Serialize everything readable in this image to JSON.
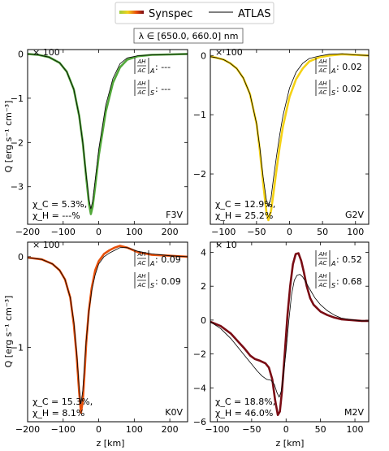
{
  "legend": {
    "entries": [
      {
        "label": "Synspec",
        "colors": [
          "#9ccc3c",
          "#f2d21c",
          "#e64a0a",
          "#7a0c14"
        ]
      },
      {
        "label": "ATLAS",
        "color": "#000000"
      }
    ]
  },
  "wavelength_label": "λ ∈ [650.0, 660.0] nm",
  "ylabel": "Q [erg s⁻¹ cm⁻³]",
  "xlabel": "z [km]",
  "chart_data": [
    {
      "type": "line",
      "name": "F3V",
      "title": "F3V",
      "scale_label": "× 100",
      "xlim": [
        -200,
        250
      ],
      "ylim": [
        -3.85,
        0.1
      ],
      "xticks": [
        -200,
        -100,
        0,
        100,
        200
      ],
      "yticks": [
        0,
        -1,
        -2,
        -3
      ],
      "color": "#52a83a",
      "ratio_A": "---",
      "ratio_S": "---",
      "chi_c": "χ_C = 5.3%,",
      "chi_h": "χ_H = ---%",
      "series": [
        {
          "name": "Synspec",
          "x": [
            -200,
            -170,
            -140,
            -110,
            -90,
            -70,
            -55,
            -45,
            -35,
            -27,
            -22,
            -17,
            -10,
            0,
            20,
            40,
            60,
            80,
            110,
            150,
            200,
            250
          ],
          "y": [
            0,
            -0.02,
            -0.07,
            -0.2,
            -0.4,
            -0.8,
            -1.4,
            -2.0,
            -2.8,
            -3.4,
            -3.62,
            -3.45,
            -3.0,
            -2.3,
            -1.3,
            -0.65,
            -0.3,
            -0.13,
            -0.05,
            -0.02,
            -0.01,
            0
          ]
        },
        {
          "name": "ATLAS",
          "x": [
            -200,
            -170,
            -140,
            -110,
            -90,
            -70,
            -55,
            -45,
            -35,
            -27,
            -22,
            -17,
            -10,
            0,
            20,
            40,
            60,
            80,
            110,
            150,
            200,
            250
          ],
          "y": [
            0,
            -0.02,
            -0.07,
            -0.2,
            -0.4,
            -0.8,
            -1.4,
            -2.0,
            -2.75,
            -3.3,
            -3.5,
            -3.32,
            -2.85,
            -2.15,
            -1.15,
            -0.55,
            -0.22,
            -0.09,
            -0.04,
            -0.02,
            -0.01,
            0
          ]
        }
      ]
    },
    {
      "type": "line",
      "name": "G2V",
      "title": "G2V",
      "scale_label": "× 100",
      "xlim": [
        -120,
        120
      ],
      "ylim": [
        -2.85,
        0.1
      ],
      "xticks": [
        -100,
        -50,
        0,
        50,
        100
      ],
      "yticks": [
        0,
        -1,
        -2
      ],
      "color": "#f5d214",
      "ratio_A": "0.02",
      "ratio_S": "0.02",
      "chi_c": "χ_C = 12.9%,",
      "chi_h": "χ_H = 25.2%",
      "series": [
        {
          "name": "Synspec",
          "x": [
            -120,
            -110,
            -100,
            -90,
            -80,
            -70,
            -60,
            -50,
            -45,
            -40,
            -35,
            -32,
            -28,
            -24,
            -20,
            -15,
            -10,
            0,
            10,
            20,
            30,
            45,
            60,
            80,
            100,
            120
          ],
          "y": [
            -0.02,
            -0.04,
            -0.07,
            -0.13,
            -0.22,
            -0.38,
            -0.65,
            -1.15,
            -1.6,
            -2.15,
            -2.65,
            -2.78,
            -2.62,
            -2.3,
            -1.95,
            -1.55,
            -1.2,
            -0.7,
            -0.4,
            -0.22,
            -0.1,
            -0.03,
            0,
            0.02,
            0.01,
            0
          ]
        },
        {
          "name": "ATLAS",
          "x": [
            -120,
            -110,
            -100,
            -90,
            -80,
            -70,
            -60,
            -50,
            -45,
            -40,
            -35,
            -32,
            -28,
            -24,
            -20,
            -15,
            -10,
            0,
            10,
            20,
            30,
            45,
            60,
            80,
            100,
            120
          ],
          "y": [
            -0.02,
            -0.04,
            -0.07,
            -0.13,
            -0.22,
            -0.38,
            -0.65,
            -1.15,
            -1.55,
            -2.05,
            -2.45,
            -2.55,
            -2.4,
            -2.05,
            -1.72,
            -1.35,
            -1.02,
            -0.55,
            -0.28,
            -0.13,
            -0.05,
            -0.01,
            0.02,
            0.03,
            0.01,
            0
          ]
        }
      ]
    },
    {
      "type": "line",
      "name": "K0V",
      "title": "K0V",
      "scale_label": "× 100",
      "xlim": [
        -200,
        250
      ],
      "ylim": [
        -1.82,
        0.16
      ],
      "xticks": [
        -200,
        -100,
        0,
        100,
        200
      ],
      "yticks": [
        0,
        -1
      ],
      "color": "#e6500a",
      "ratio_A": "0.09",
      "ratio_S": "0.09",
      "chi_c": "χ_C = 15.3%,",
      "chi_h": "χ_H = 8.1%",
      "series": [
        {
          "name": "Synspec",
          "x": [
            -200,
            -160,
            -130,
            -110,
            -95,
            -80,
            -70,
            -62,
            -55,
            -50,
            -45,
            -40,
            -35,
            -28,
            -20,
            -10,
            0,
            15,
            30,
            45,
            60,
            80,
            110,
            150,
            200,
            250
          ],
          "y": [
            -0.01,
            -0.03,
            -0.08,
            -0.15,
            -0.25,
            -0.45,
            -0.75,
            -1.1,
            -1.5,
            -1.72,
            -1.6,
            -1.3,
            -0.95,
            -0.6,
            -0.35,
            -0.15,
            -0.05,
            0.03,
            0.07,
            0.1,
            0.12,
            0.1,
            0.05,
            0.02,
            0.01,
            0
          ]
        },
        {
          "name": "ATLAS",
          "x": [
            -200,
            -160,
            -130,
            -110,
            -95,
            -80,
            -70,
            -62,
            -55,
            -50,
            -45,
            -40,
            -35,
            -28,
            -20,
            -10,
            0,
            15,
            30,
            45,
            60,
            80,
            110,
            150,
            200,
            250
          ],
          "y": [
            -0.01,
            -0.03,
            -0.08,
            -0.15,
            -0.25,
            -0.45,
            -0.72,
            -1.05,
            -1.45,
            -1.62,
            -1.48,
            -1.2,
            -0.92,
            -0.62,
            -0.38,
            -0.2,
            -0.08,
            0,
            0.04,
            0.07,
            0.1,
            0.1,
            0.06,
            0.03,
            0.01,
            0
          ]
        }
      ]
    },
    {
      "type": "line",
      "name": "M2V",
      "title": "M2V",
      "scale_label": "× 10",
      "xlim": [
        -110,
        120
      ],
      "ylim": [
        -6.0,
        4.6
      ],
      "xticks": [
        -100,
        -50,
        0,
        50,
        100
      ],
      "yticks": [
        4,
        2,
        0,
        -2,
        -4,
        -6
      ],
      "color": "#7a0c14",
      "ratio_A": "0.52",
      "ratio_S": "0.68",
      "chi_c": "χ_C = 18.8%,",
      "chi_h": "χ_H = 46.0%",
      "series": [
        {
          "name": "Synspec",
          "x": [
            -110,
            -95,
            -80,
            -70,
            -60,
            -52,
            -45,
            -38,
            -30,
            -25,
            -20,
            -16,
            -12,
            -9,
            -6,
            -2,
            2,
            6,
            10,
            14,
            18,
            22,
            26,
            30,
            35,
            40,
            50,
            60,
            70,
            80,
            95,
            110,
            120
          ],
          "y": [
            -0.1,
            -0.35,
            -0.8,
            -1.25,
            -1.7,
            -2.1,
            -2.3,
            -2.4,
            -2.55,
            -2.8,
            -3.5,
            -4.7,
            -5.6,
            -5.4,
            -4.2,
            -2.0,
            0.3,
            2.0,
            3.3,
            3.9,
            3.95,
            3.5,
            2.8,
            2.0,
            1.3,
            0.9,
            0.5,
            0.3,
            0.15,
            0.05,
            0,
            -0.05,
            -0.05
          ]
        },
        {
          "name": "ATLAS",
          "x": [
            -110,
            -95,
            -80,
            -70,
            -60,
            -50,
            -42,
            -35,
            -28,
            -22,
            -17,
            -13,
            -10,
            -7,
            -4,
            0,
            4,
            8,
            12,
            16,
            20,
            24,
            28,
            32,
            37,
            42,
            50,
            60,
            70,
            80,
            95,
            110,
            120
          ],
          "y": [
            -0.1,
            -0.5,
            -1.1,
            -1.6,
            -2.1,
            -2.6,
            -3.0,
            -3.3,
            -3.5,
            -3.55,
            -3.8,
            -4.3,
            -4.55,
            -4.2,
            -3.3,
            -1.8,
            0,
            1.5,
            2.35,
            2.65,
            2.7,
            2.55,
            2.3,
            2.0,
            1.65,
            1.3,
            0.9,
            0.55,
            0.3,
            0.12,
            0.02,
            -0.05,
            -0.05
          ]
        }
      ]
    }
  ]
}
